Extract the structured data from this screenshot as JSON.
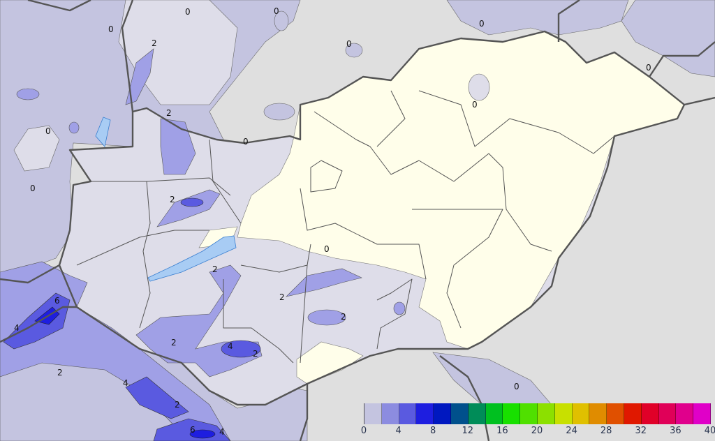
{
  "map": {
    "colors": {
      "background": "#dfdfdf",
      "outer_precip_0_2": "#c4c4e0",
      "domain_dry": "#dedde9",
      "dry_zone": "#fffeea",
      "lake": "#a8ccf4",
      "precip_2_4": "#a0a0e6",
      "precip_4_6": "#5a5ae0",
      "precip_6_8": "#1e1ee0",
      "border": "#555555"
    },
    "contour_labels": [
      "0",
      "0",
      "0",
      "0",
      "0",
      "0",
      "0",
      "0",
      "0",
      "0",
      "0",
      "0",
      "2",
      "2",
      "2",
      "2",
      "2",
      "2",
      "2",
      "2",
      "2",
      "2",
      "4",
      "4",
      "4",
      "4",
      "6",
      "6"
    ]
  },
  "legend": {
    "bins": [
      "#c4c4e0",
      "#8c8ce0",
      "#5a5ae0",
      "#1e1ee0",
      "#0018c0",
      "#00508c",
      "#008c58",
      "#00c020",
      "#18e000",
      "#50e000",
      "#8ce000",
      "#c8e000",
      "#e0c000",
      "#e08c00",
      "#e05000",
      "#e01800",
      "#e00028",
      "#e00058",
      "#e0008c",
      "#e000c8"
    ],
    "ticks": [
      "0",
      "4",
      "8",
      "12",
      "16",
      "20",
      "24",
      "28",
      "32",
      "36",
      "40"
    ]
  }
}
